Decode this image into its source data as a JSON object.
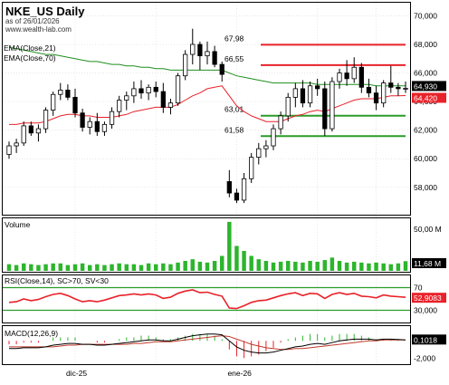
{
  "chart_data": {
    "title": "NKE_US Daily",
    "subtitle": "as of 26/01/2026",
    "watermark": "www.wealth-lab.com",
    "indicators": [
      "EMA(Close,21)",
      "EMA(Close,70)"
    ],
    "price_axis": {
      "ylim": [
        56000,
        71000
      ],
      "ticks": [
        "70,000",
        "68,000",
        "66,000",
        "64,000",
        "62,000",
        "60,000",
        "58,000"
      ]
    },
    "x_ticks": [
      "dic-25",
      "ene-26"
    ],
    "price_badges": [
      {
        "value": "64,930",
        "color": "#000000"
      },
      {
        "value": "64,420",
        "color": "#e8222a"
      }
    ],
    "levels": [
      {
        "label": "67,98",
        "value": 67.98,
        "color": "#e8222a"
      },
      {
        "label": "66,55",
        "value": 66.55,
        "color": "#e8222a"
      },
      {
        "label": "63,01",
        "value": 63.01,
        "color": "#2a9d2a"
      },
      {
        "label": "61,58",
        "value": 61.58,
        "color": "#2a9d2a"
      }
    ],
    "candles": [
      [
        60.3,
        61.2,
        60.0,
        60.9
      ],
      [
        60.9,
        61.4,
        60.4,
        61.1
      ],
      [
        61.1,
        62.6,
        60.9,
        62.3
      ],
      [
        62.3,
        62.6,
        61.6,
        61.8
      ],
      [
        61.8,
        62.4,
        61.2,
        62.1
      ],
      [
        62.1,
        63.6,
        61.8,
        63.4
      ],
      [
        63.4,
        64.7,
        63.0,
        64.5
      ],
      [
        64.5,
        65.3,
        64.1,
        64.8
      ],
      [
        64.8,
        65.2,
        64.1,
        64.3
      ],
      [
        64.3,
        64.9,
        62.9,
        63.2
      ],
      [
        63.2,
        63.5,
        61.9,
        62.2
      ],
      [
        62.2,
        62.9,
        61.7,
        62.6
      ],
      [
        62.6,
        63.2,
        61.6,
        61.9
      ],
      [
        61.9,
        62.6,
        61.6,
        62.4
      ],
      [
        62.4,
        63.6,
        62.1,
        63.3
      ],
      [
        63.3,
        64.4,
        62.9,
        64.1
      ],
      [
        64.1,
        64.7,
        63.4,
        64.4
      ],
      [
        64.4,
        65.4,
        63.9,
        64.9
      ],
      [
        64.9,
        65.5,
        64.2,
        64.6
      ],
      [
        64.6,
        65.2,
        64.1,
        65.0
      ],
      [
        65.0,
        65.4,
        64.3,
        64.7
      ],
      [
        64.7,
        65.3,
        63.2,
        63.6
      ],
      [
        63.6,
        64.2,
        63.1,
        63.9
      ],
      [
        63.9,
        66.0,
        63.7,
        65.8
      ],
      [
        65.8,
        67.6,
        65.5,
        67.3
      ],
      [
        67.3,
        69.1,
        66.6,
        68.0
      ],
      [
        68.0,
        68.2,
        66.2,
        67.2
      ],
      [
        67.2,
        68.2,
        66.6,
        67.5
      ],
      [
        67.5,
        67.9,
        66.4,
        66.6
      ],
      [
        66.6,
        66.8,
        65.4,
        65.9
      ],
      [
        58.4,
        59.2,
        57.3,
        57.6
      ],
      [
        57.6,
        57.9,
        56.9,
        57.1
      ],
      [
        57.1,
        59.0,
        56.9,
        58.6
      ],
      [
        58.6,
        60.4,
        58.3,
        60.1
      ],
      [
        60.1,
        61.1,
        59.6,
        60.7
      ],
      [
        60.7,
        61.3,
        60.1,
        60.9
      ],
      [
        60.9,
        62.4,
        60.6,
        62.1
      ],
      [
        62.1,
        63.3,
        61.7,
        63.0
      ],
      [
        63.0,
        64.6,
        62.6,
        64.3
      ],
      [
        64.3,
        65.3,
        63.6,
        64.9
      ],
      [
        64.9,
        65.5,
        63.6,
        63.9
      ],
      [
        63.9,
        65.4,
        63.6,
        65.1
      ],
      [
        65.1,
        65.6,
        64.4,
        64.9
      ],
      [
        64.9,
        65.4,
        61.6,
        62.1
      ],
      [
        62.1,
        65.7,
        61.9,
        65.4
      ],
      [
        65.4,
        66.3,
        64.9,
        66.0
      ],
      [
        66.0,
        66.9,
        65.1,
        65.6
      ],
      [
        65.6,
        67.1,
        65.3,
        66.4
      ],
      [
        66.4,
        66.7,
        64.6,
        65.0
      ],
      [
        65.0,
        65.6,
        64.3,
        64.6
      ],
      [
        64.6,
        65.1,
        63.4,
        63.9
      ],
      [
        63.9,
        65.5,
        63.6,
        65.3
      ],
      [
        65.3,
        66.5,
        64.6,
        65.0
      ],
      [
        65.0,
        65.3,
        64.4,
        64.9
      ],
      [
        64.9,
        65.4,
        64.6,
        64.93
      ]
    ],
    "ema21": [
      62.4,
      62.4,
      62.5,
      62.5,
      62.5,
      62.6,
      62.8,
      63.0,
      63.1,
      63.1,
      63.0,
      63.0,
      62.9,
      62.9,
      62.9,
      63.0,
      63.1,
      63.3,
      63.4,
      63.5,
      63.6,
      63.6,
      63.6,
      63.8,
      64.1,
      64.4,
      64.6,
      64.9,
      65.0,
      65.1,
      64.4,
      63.7,
      63.3,
      63.0,
      62.8,
      62.6,
      62.6,
      62.6,
      62.8,
      63.0,
      63.1,
      63.3,
      63.4,
      63.3,
      63.5,
      63.7,
      63.9,
      64.1,
      64.2,
      64.2,
      64.2,
      64.3,
      64.4,
      64.4,
      64.42
    ],
    "ema70": [
      67.8,
      67.7,
      67.6,
      67.5,
      67.4,
      67.3,
      67.3,
      67.2,
      67.1,
      67.0,
      66.9,
      66.8,
      66.8,
      66.7,
      66.6,
      66.6,
      66.5,
      66.5,
      66.4,
      66.4,
      66.3,
      66.3,
      66.2,
      66.2,
      66.2,
      66.2,
      66.2,
      66.2,
      66.2,
      66.2,
      66.0,
      65.8,
      65.7,
      65.6,
      65.5,
      65.4,
      65.3,
      65.3,
      65.3,
      65.3,
      65.3,
      65.3,
      65.2,
      65.2,
      65.2,
      65.2,
      65.2,
      65.2,
      65.2,
      65.2,
      65.1,
      65.1,
      65.1,
      65.1,
      65.1
    ],
    "volume": {
      "label": "Volume",
      "ylim": [
        0,
        60
      ],
      "ticks": [
        "50,00 M"
      ],
      "badge": "11,68 M",
      "values": [
        8,
        7,
        9,
        8,
        7,
        8,
        9,
        9,
        7,
        8,
        9,
        7,
        8,
        7,
        8,
        9,
        8,
        8,
        7,
        9,
        8,
        9,
        8,
        10,
        12,
        14,
        11,
        10,
        12,
        18,
        59,
        30,
        24,
        18,
        14,
        12,
        10,
        11,
        12,
        11,
        10,
        12,
        11,
        13,
        16,
        12,
        10,
        11,
        10,
        9,
        10,
        9,
        8,
        9,
        11.68
      ]
    },
    "rsi": {
      "label": "RSI(Close,14), SC>70, SV<30",
      "ylim": [
        0,
        100
      ],
      "ticks": [
        "70",
        "30,000"
      ],
      "bands": [
        70,
        30
      ],
      "badge": "52,9083",
      "values": [
        44,
        45,
        50,
        47,
        49,
        54,
        58,
        60,
        56,
        50,
        45,
        47,
        45,
        48,
        52,
        56,
        57,
        59,
        57,
        59,
        57,
        51,
        53,
        60,
        64,
        66,
        61,
        62,
        58,
        55,
        34,
        33,
        38,
        44,
        47,
        48,
        52,
        56,
        59,
        61,
        56,
        60,
        59,
        51,
        58,
        61,
        58,
        60,
        55,
        54,
        52,
        57,
        55,
        54,
        52.9
      ]
    },
    "macd": {
      "label": "MACD(12,26,9)",
      "ylim": [
        -2.6,
        1.5
      ],
      "ticks": [
        "-2,000"
      ],
      "badge": "0,1018",
      "macd": [
        -0.9,
        -0.9,
        -0.8,
        -0.8,
        -0.8,
        -0.7,
        -0.5,
        -0.4,
        -0.3,
        -0.3,
        -0.4,
        -0.4,
        -0.5,
        -0.5,
        -0.4,
        -0.3,
        -0.2,
        -0.1,
        0.0,
        0.1,
        0.1,
        0.0,
        0.0,
        0.2,
        0.4,
        0.6,
        0.7,
        0.8,
        0.8,
        0.7,
        0.0,
        -0.7,
        -1.1,
        -1.3,
        -1.4,
        -1.4,
        -1.3,
        -1.1,
        -0.9,
        -0.7,
        -0.6,
        -0.4,
        -0.3,
        -0.4,
        -0.2,
        0.0,
        0.1,
        0.2,
        0.2,
        0.2,
        0.1,
        0.2,
        0.2,
        0.15,
        0.1018
      ],
      "signal": [
        -0.7,
        -0.7,
        -0.7,
        -0.7,
        -0.7,
        -0.7,
        -0.7,
        -0.6,
        -0.5,
        -0.5,
        -0.4,
        -0.4,
        -0.4,
        -0.4,
        -0.4,
        -0.4,
        -0.4,
        -0.3,
        -0.3,
        -0.2,
        -0.1,
        -0.1,
        -0.1,
        0.0,
        0.1,
        0.2,
        0.3,
        0.4,
        0.5,
        0.6,
        0.5,
        0.2,
        -0.1,
        -0.4,
        -0.6,
        -0.8,
        -0.9,
        -1.0,
        -1.0,
        -0.9,
        -0.9,
        -0.8,
        -0.7,
        -0.6,
        -0.5,
        -0.4,
        -0.3,
        -0.2,
        -0.1,
        0.0,
        0.0,
        0.1,
        0.1,
        0.1,
        0.1
      ]
    }
  },
  "colors": {
    "ema21": "#e8222a",
    "ema70": "#1f8f1f",
    "volume": "#2db52d",
    "rsi": "#e8222a",
    "rsi_band": "#2a9d2a",
    "macd": "#000000",
    "signal": "#c0392b",
    "hist_pos": "#2db52d",
    "hist_neg": "#e8222a",
    "grid": "#d9d9d9"
  }
}
